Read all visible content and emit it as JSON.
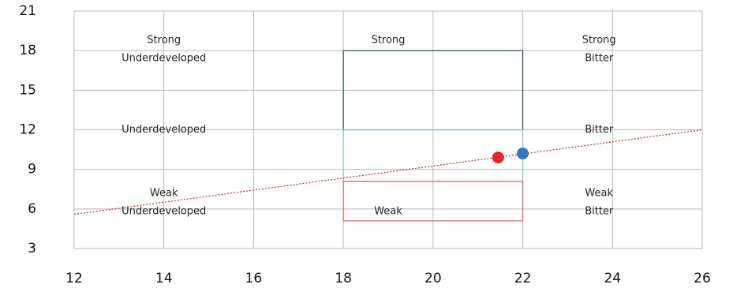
{
  "chart_data": {
    "type": "scatter",
    "title": "",
    "xlabel": "",
    "ylabel": "",
    "xlim": [
      12,
      26
    ],
    "ylim": [
      3,
      21
    ],
    "x_ticks": [
      "12",
      "14",
      "16",
      "18",
      "20",
      "22",
      "24",
      "26"
    ],
    "y_ticks": [
      "3",
      "6",
      "9",
      "12",
      "15",
      "18",
      "21"
    ],
    "grid": true,
    "zone_labels": [
      {
        "text": "Strong",
        "x": 14,
        "y": 18.8
      },
      {
        "text": "Underdeveloped",
        "x": 14,
        "y": 17.4
      },
      {
        "text": "Strong",
        "x": 19,
        "y": 18.8
      },
      {
        "text": "Strong",
        "x": 23.7,
        "y": 18.8
      },
      {
        "text": "Bitter",
        "x": 23.7,
        "y": 17.4
      },
      {
        "text": "Underdeveloped",
        "x": 14,
        "y": 12
      },
      {
        "text": "Bitter",
        "x": 23.7,
        "y": 12
      },
      {
        "text": "Weak",
        "x": 14,
        "y": 7.2
      },
      {
        "text": "Underdeveloped",
        "x": 14,
        "y": 5.8
      },
      {
        "text": "Weak",
        "x": 19,
        "y": 5.8
      },
      {
        "text": "Weak",
        "x": 23.7,
        "y": 7.2
      },
      {
        "text": "Bitter",
        "x": 23.7,
        "y": 5.8
      }
    ],
    "regions": [
      {
        "x0": 18,
        "x1": 22,
        "y0": 12,
        "y1": 18,
        "color": "#2b4b5a"
      },
      {
        "x0": 18,
        "x1": 22,
        "y0": 8.1,
        "y1": 12,
        "color": "#8fc3c8"
      },
      {
        "x0": 18,
        "x1": 22,
        "y0": 5.1,
        "y1": 8.1,
        "color": "#e06060"
      }
    ],
    "trend_line": {
      "x": [
        12,
        26
      ],
      "y": [
        5.6,
        12
      ],
      "color": "#d62020"
    },
    "points": [
      {
        "x": 21.45,
        "y": 9.9,
        "color": "#e5252a"
      },
      {
        "x": 22.0,
        "y": 10.2,
        "color": "#2f78c4"
      }
    ]
  }
}
